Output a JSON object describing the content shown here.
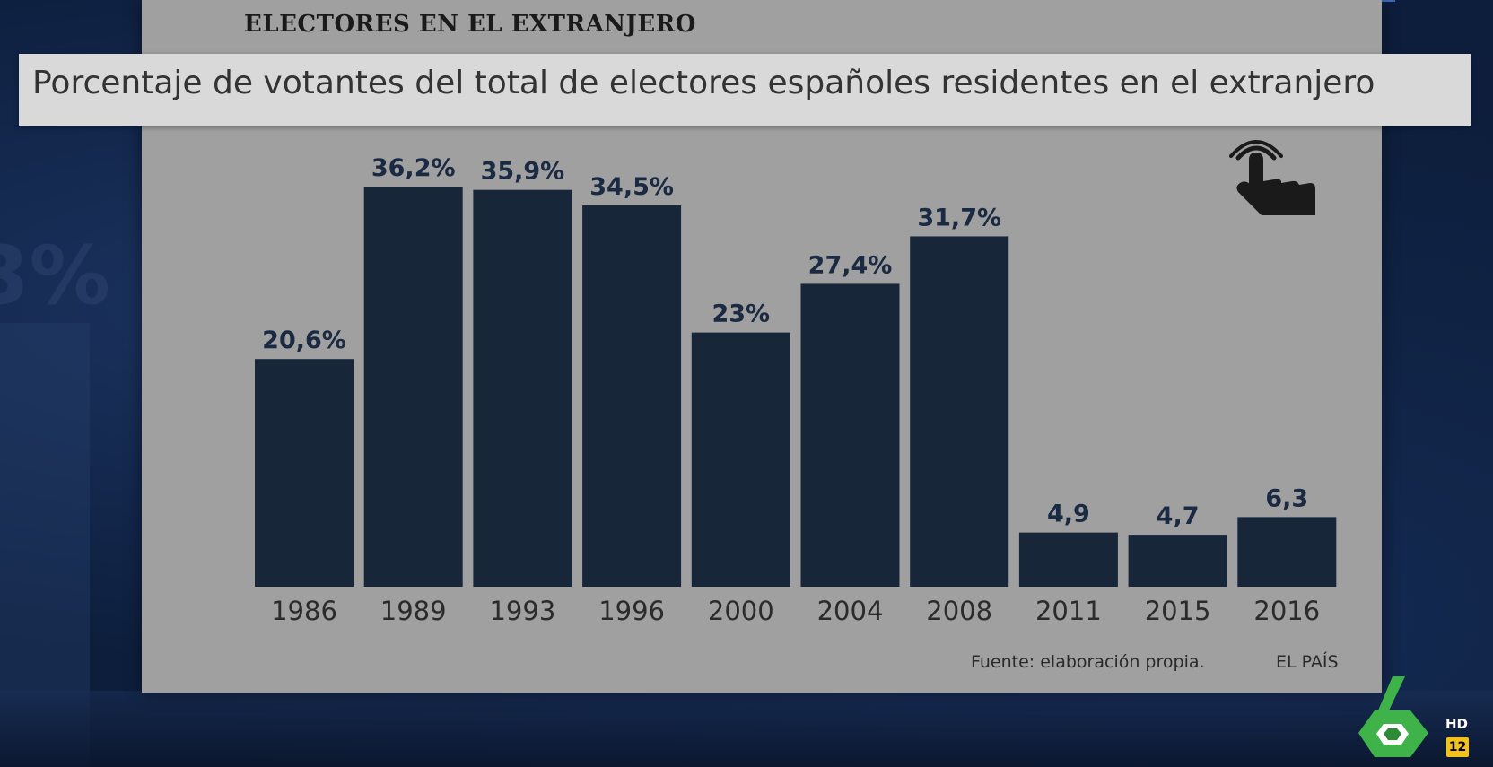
{
  "header": {
    "title": "ELECTORES EN EL EXTRANJERO",
    "subtitle": "Porcentaje de votantes del total de electores españoles residentes en el extranjero"
  },
  "footer": {
    "source": "Fuente: elaboración propia.",
    "brand": "EL PAÍS"
  },
  "broadcast": {
    "hd_label": "HD",
    "channel_number": "12"
  },
  "icons": [
    "hand-pointer-icon",
    "channel-six-logo"
  ],
  "colors": {
    "bar": "#18263a",
    "panel": "#a0a0a0",
    "subtitle_band": "#d9d9d9",
    "background": "#0d1e3c"
  },
  "chart_data": {
    "type": "bar",
    "title": "ELECTORES EN EL EXTRANJERO",
    "subtitle": "Porcentaje de votantes del total de electores españoles residentes en el extranjero",
    "categories": [
      "1986",
      "1989",
      "1993",
      "1996",
      "2000",
      "2004",
      "2008",
      "2011",
      "2015",
      "2016"
    ],
    "values": [
      20.6,
      36.2,
      35.9,
      34.5,
      23,
      27.4,
      31.7,
      4.9,
      4.7,
      6.3
    ],
    "labels": [
      "20,6%",
      "36,2%",
      "35,9%",
      "34,5%",
      "23%",
      "27,4%",
      "31,7%",
      "4,9",
      "4,7",
      "6,3"
    ],
    "xlabel": "",
    "ylabel": "",
    "ylim": [
      0,
      36.2
    ],
    "grid": false,
    "legend": "none"
  }
}
